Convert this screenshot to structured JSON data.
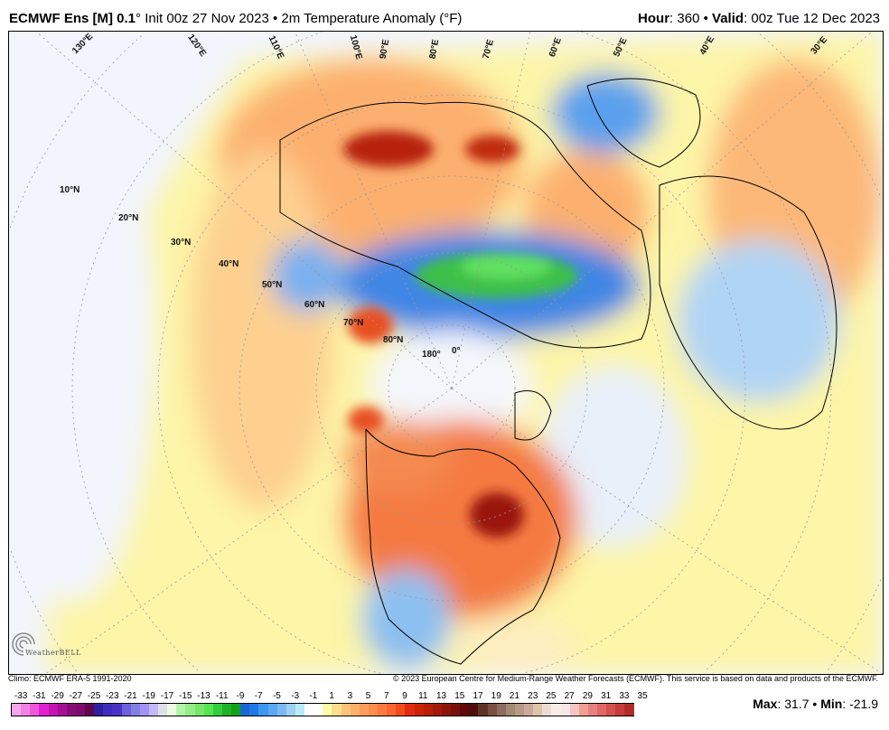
{
  "header": {
    "model": "ECMWF Ens [M] 0.1",
    "degree": "°",
    "init": "Init 00z 27 Nov 2023",
    "sep": "•",
    "product": "2m Temperature Anomaly (°F)",
    "hour_label": "Hour",
    "hour_value": ": 360",
    "valid_label": "Valid",
    "valid_value": ": 00z Tue 12 Dec 2023"
  },
  "map": {
    "lat_labels": [
      "10°N",
      "20°N",
      "30°N",
      "40°N",
      "50°N",
      "60°N",
      "70°N",
      "80°N"
    ],
    "lon_labels": [
      "130°E",
      "120°E",
      "110°E",
      "100°E",
      "90°E",
      "80°E",
      "70°E",
      "60°E",
      "50°E",
      "40°E",
      "30°E"
    ],
    "center_labels": [
      "180°",
      "0°"
    ],
    "logo_text": "WeatherBELL"
  },
  "footer": {
    "climo": "Climo: ECMWF ERA-5 1991-2020",
    "copyright": "© 2023 European Centre for Medium-Range Weather Forecasts (ECMWF). This service is based on data and products of the ECMWF.",
    "max_label": "Max",
    "max_value": ": 31.7",
    "min_label": "Min",
    "min_value": ": -21.9",
    "sep": "•"
  },
  "colorbar": {
    "ticks": [
      "-33",
      "-31",
      "-29",
      "-27",
      "-25",
      "-23",
      "-21",
      "-19",
      "-17",
      "-15",
      "-13",
      "-11",
      "-9",
      "-7",
      "-5",
      "-3",
      "-1",
      "1",
      "3",
      "5",
      "7",
      "9",
      "11",
      "13",
      "15",
      "17",
      "19",
      "21",
      "23",
      "25",
      "27",
      "29",
      "31",
      "33",
      "35"
    ],
    "colors": [
      "#f7a6ec",
      "#f381e4",
      "#ee57dc",
      "#e322cf",
      "#c514b2",
      "#a50f93",
      "#870c78",
      "#7d0a6c",
      "#5e0650",
      "#2d1fa0",
      "#3d2dbb",
      "#4a33c4",
      "#6f5fdc",
      "#8080e0",
      "#a493f5",
      "#c1b8f8",
      "#dfe0ea",
      "#ecfae4",
      "#b4f4a8",
      "#95ee88",
      "#78e66a",
      "#55e455",
      "#35cd3e",
      "#1eb327",
      "#13a01b",
      "#1668d0",
      "#1f78e8",
      "#3d96f0",
      "#5aa8f2",
      "#7ab8f4",
      "#9fd0f6",
      "#b6ecf8",
      "#ffffff",
      "#ffffff",
      "#fefca8",
      "#fee08c",
      "#fec37a",
      "#fdb06a",
      "#fd9e5c",
      "#fc8c50",
      "#fb7a42",
      "#fa6532",
      "#f34b1e",
      "#e02c0e",
      "#cc2208",
      "#b81e08",
      "#a51a0a",
      "#8e1408",
      "#780f08",
      "#620808",
      "#4e0c0c",
      "#603424",
      "#7a5040",
      "#8e6a60",
      "#a48a72",
      "#b89888",
      "#cca89a",
      "#e0c4a8",
      "#ecdcd4",
      "#f8ece8",
      "#f8e8e6",
      "#f8c4c4",
      "#f0a090",
      "#e88080",
      "#e06868",
      "#d45050",
      "#c43c3c",
      "#b02e28"
    ]
  }
}
